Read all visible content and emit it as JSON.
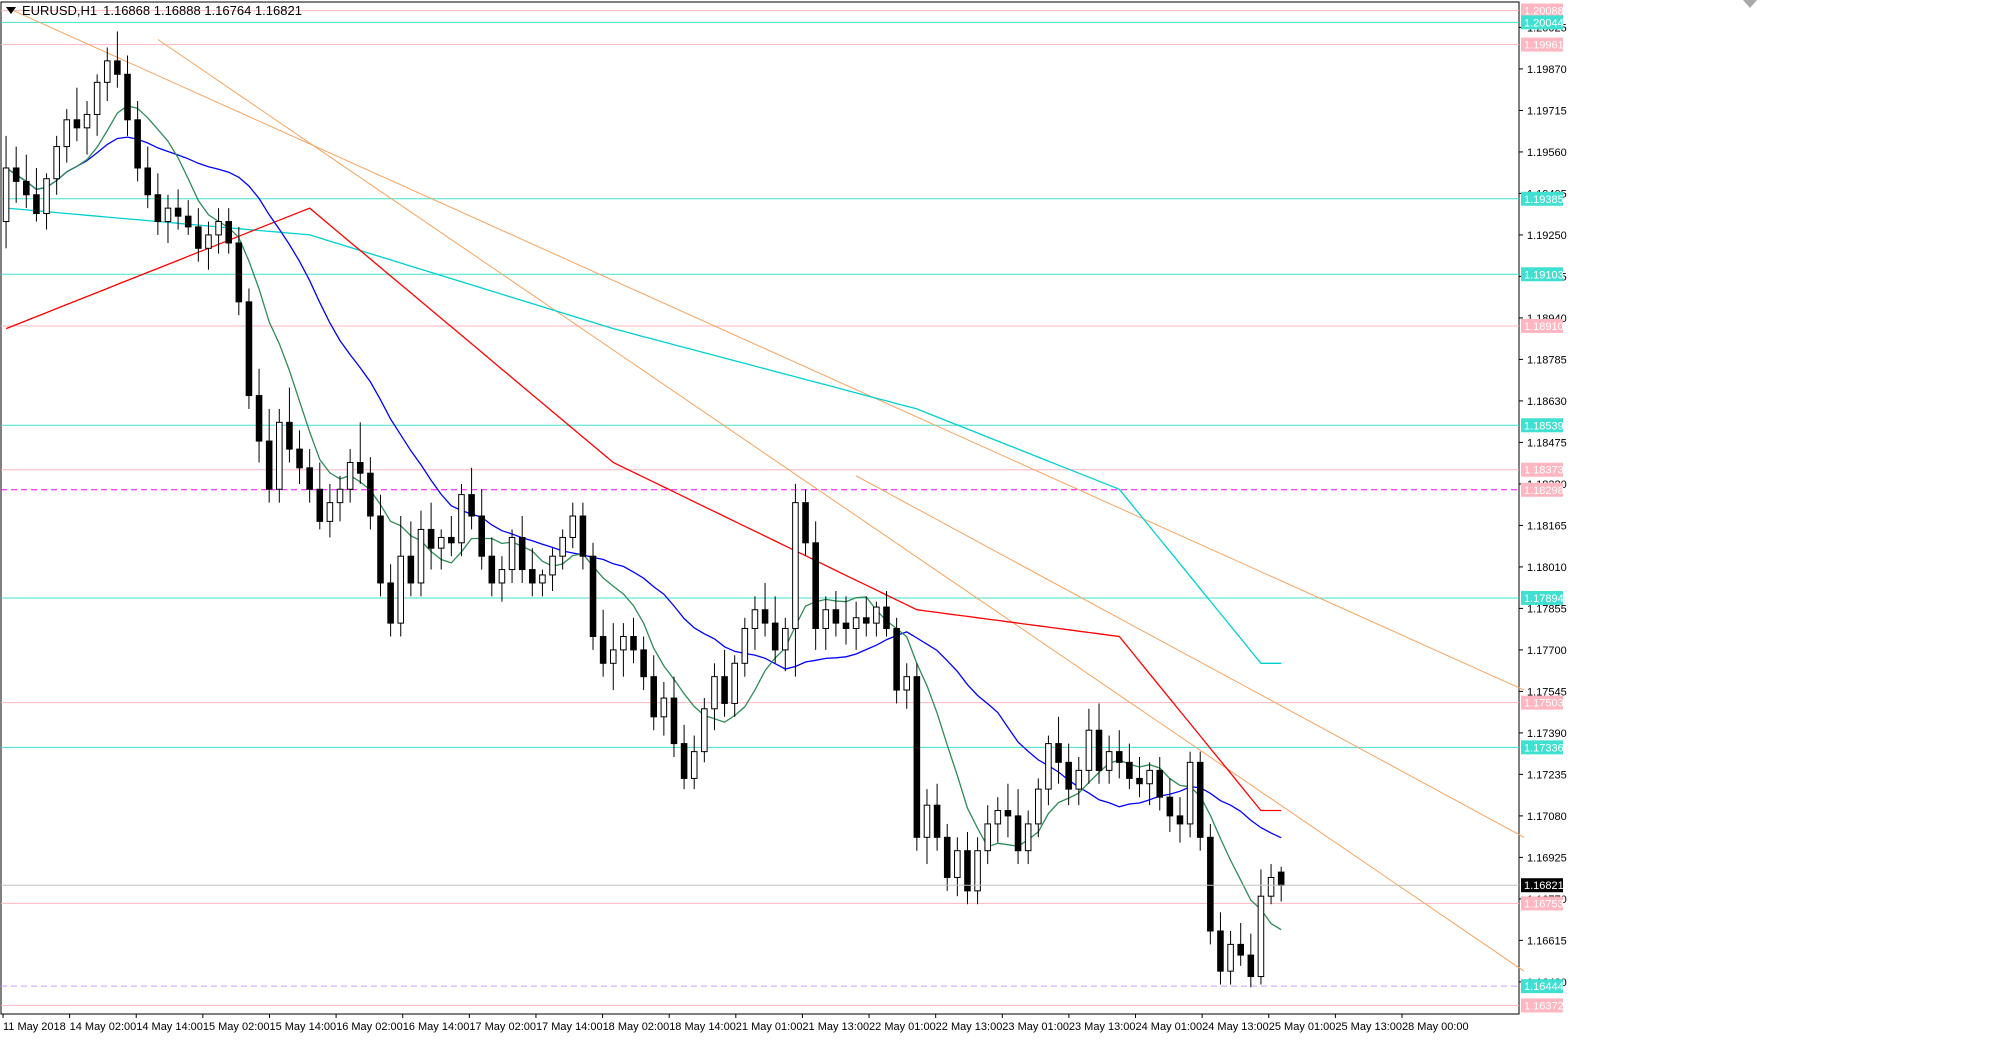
{
  "header": {
    "symbol_timeframe": "EURUSD,H1",
    "ohlc": "1.16868 1.16888 1.16764 1.16821"
  },
  "colors": {
    "background": "#ffffff",
    "frame": "#000000",
    "candle_bull": "#ffffff",
    "candle_bear": "#000000",
    "ma_fast": "#2e8b57",
    "ma_mid": "#0000ff",
    "ma_slow": "#ff0000",
    "ma_long": "#00d0d0",
    "trendline": "#f4a460",
    "level_cyan": "#40e0d0",
    "level_pink": "#ffb6c1",
    "level_magenta": "#ff00ff",
    "level_lavender": "#c8a2ff",
    "sr_blue": "#0000cc",
    "sr_green": "#2e8b57",
    "current_price_bg": "#000000"
  },
  "chart_data": {
    "type": "candlestick",
    "symbol": "EURUSD",
    "timeframe": "H1",
    "ylim": [
      1.1634,
      1.2012
    ],
    "price_axis_ticks": [
      "1.20025",
      "1.19870",
      "1.19715",
      "1.19560",
      "1.19405",
      "1.19250",
      "1.19095",
      "1.18940",
      "1.18785",
      "1.18630",
      "1.18475",
      "1.18320",
      "1.18165",
      "1.18010",
      "1.17855",
      "1.17700",
      "1.17545",
      "1.17390",
      "1.17235",
      "1.17080",
      "1.16925",
      "1.16770",
      "1.16615",
      "1.16460"
    ],
    "time_axis_labels": [
      "11 May 2018",
      "14 May 02:00",
      "14 May 14:00",
      "15 May 02:00",
      "15 May 14:00",
      "16 May 02:00",
      "16 May 14:00",
      "17 May 02:00",
      "17 May 14:00",
      "18 May 02:00",
      "18 May 14:00",
      "21 May 01:00",
      "21 May 13:00",
      "22 May 01:00",
      "22 May 13:00",
      "23 May 01:00",
      "23 May 13:00",
      "24 May 01:00",
      "24 May 13:00",
      "25 May 01:00",
      "25 May 13:00",
      "28 May 00:00"
    ],
    "current_price": "1.16821",
    "levels": [
      {
        "price": 1.20088,
        "label": "1.20088",
        "kind": "pink"
      },
      {
        "price": 1.20044,
        "label": "1.20044",
        "kind": "cyan"
      },
      {
        "price": 1.19961,
        "label": "1.19961",
        "kind": "pink"
      },
      {
        "price": 1.19385,
        "label": "1.19385",
        "kind": "cyan"
      },
      {
        "price": 1.19103,
        "label": "1.19103",
        "kind": "cyan"
      },
      {
        "price": 1.1891,
        "label": "1.18910",
        "kind": "pink"
      },
      {
        "price": 1.18539,
        "label": "1.18539",
        "kind": "cyan"
      },
      {
        "price": 1.18373,
        "label": "1.18373",
        "kind": "pink"
      },
      {
        "price": 1.18298,
        "label": "1.18298",
        "kind": "pink-magenta"
      },
      {
        "price": 1.17894,
        "label": "1.17894",
        "kind": "cyan"
      },
      {
        "price": 1.17503,
        "label": "1.17503",
        "kind": "pink"
      },
      {
        "price": 1.17336,
        "label": "1.17336",
        "kind": "cyan"
      },
      {
        "price": 1.16753,
        "label": "1.16753",
        "kind": "pink"
      },
      {
        "price": 1.16444,
        "label": "1.16444",
        "kind": "cyan-lavender"
      },
      {
        "price": 1.16372,
        "label": "1.16372",
        "kind": "pink"
      }
    ],
    "series": [
      {
        "name": "Price",
        "type": "candlestick",
        "ohlc": [
          [
            1.193,
            1.1962,
            1.192,
            1.195
          ],
          [
            1.195,
            1.1958,
            1.1937,
            1.1945
          ],
          [
            1.1945,
            1.1955,
            1.1935,
            1.194
          ],
          [
            1.194,
            1.195,
            1.193,
            1.1933
          ],
          [
            1.1933,
            1.1948,
            1.1927,
            1.1946
          ],
          [
            1.1946,
            1.1962,
            1.194,
            1.1958
          ],
          [
            1.1958,
            1.1972,
            1.1952,
            1.1968
          ],
          [
            1.1968,
            1.198,
            1.196,
            1.1965
          ],
          [
            1.1965,
            1.1975,
            1.1955,
            1.197
          ],
          [
            1.197,
            1.1985,
            1.1962,
            1.1982
          ],
          [
            1.1982,
            1.1995,
            1.1975,
            1.199
          ],
          [
            1.199,
            1.2001,
            1.198,
            1.1985
          ],
          [
            1.1985,
            1.1992,
            1.1962,
            1.1968
          ],
          [
            1.1968,
            1.1975,
            1.1945,
            1.195
          ],
          [
            1.195,
            1.1958,
            1.1935,
            1.194
          ],
          [
            1.194,
            1.1948,
            1.1925,
            1.193
          ],
          [
            1.193,
            1.194,
            1.1922,
            1.1935
          ],
          [
            1.1935,
            1.1942,
            1.1927,
            1.1932
          ],
          [
            1.1932,
            1.1938,
            1.1925,
            1.1928
          ],
          [
            1.1928,
            1.1935,
            1.1915,
            1.192
          ],
          [
            1.192,
            1.193,
            1.1912,
            1.1925
          ],
          [
            1.1925,
            1.1935,
            1.1918,
            1.193
          ],
          [
            1.193,
            1.1935,
            1.1918,
            1.1922
          ],
          [
            1.1922,
            1.1928,
            1.1895,
            1.19
          ],
          [
            1.19,
            1.1905,
            1.186,
            1.1865
          ],
          [
            1.1865,
            1.1875,
            1.184,
            1.1848
          ],
          [
            1.1848,
            1.186,
            1.1825,
            1.183
          ],
          [
            1.183,
            1.186,
            1.1825,
            1.1855
          ],
          [
            1.1855,
            1.1868,
            1.184,
            1.1845
          ],
          [
            1.1845,
            1.1852,
            1.1832,
            1.1838
          ],
          [
            1.1838,
            1.1845,
            1.1825,
            1.183
          ],
          [
            1.183,
            1.184,
            1.1815,
            1.1818
          ],
          [
            1.1818,
            1.1832,
            1.1812,
            1.1825
          ],
          [
            1.1825,
            1.1835,
            1.1818,
            1.183
          ],
          [
            1.183,
            1.1845,
            1.1825,
            1.184
          ],
          [
            1.184,
            1.1855,
            1.1832,
            1.1836
          ],
          [
            1.1836,
            1.1842,
            1.1815,
            1.182
          ],
          [
            1.182,
            1.1828,
            1.179,
            1.1795
          ],
          [
            1.1795,
            1.1802,
            1.1775,
            1.178
          ],
          [
            1.178,
            1.182,
            1.1775,
            1.1805
          ],
          [
            1.1805,
            1.1818,
            1.179,
            1.1795
          ],
          [
            1.1795,
            1.1822,
            1.179,
            1.1815
          ],
          [
            1.1815,
            1.1825,
            1.18,
            1.1808
          ],
          [
            1.1808,
            1.1815,
            1.18,
            1.1812
          ],
          [
            1.1812,
            1.182,
            1.1805,
            1.181
          ],
          [
            1.181,
            1.1832,
            1.1805,
            1.1828
          ],
          [
            1.1828,
            1.1838,
            1.1815,
            1.182
          ],
          [
            1.182,
            1.183,
            1.18,
            1.1805
          ],
          [
            1.1805,
            1.1812,
            1.179,
            1.1795
          ],
          [
            1.1795,
            1.1805,
            1.1788,
            1.18
          ],
          [
            1.18,
            1.1815,
            1.1795,
            1.1812
          ],
          [
            1.1812,
            1.182,
            1.1795,
            1.18
          ],
          [
            1.18,
            1.1808,
            1.179,
            1.1795
          ],
          [
            1.1795,
            1.18,
            1.179,
            1.1798
          ],
          [
            1.1798,
            1.1808,
            1.1792,
            1.1805
          ],
          [
            1.1805,
            1.1815,
            1.18,
            1.1812
          ],
          [
            1.1812,
            1.1825,
            1.1808,
            1.182
          ],
          [
            1.182,
            1.1825,
            1.18,
            1.1805
          ],
          [
            1.1805,
            1.181,
            1.177,
            1.1775
          ],
          [
            1.1775,
            1.1785,
            1.176,
            1.1765
          ],
          [
            1.1765,
            1.178,
            1.1755,
            1.177
          ],
          [
            1.177,
            1.178,
            1.176,
            1.1775
          ],
          [
            1.1775,
            1.1782,
            1.1765,
            1.177
          ],
          [
            1.177,
            1.1775,
            1.1755,
            1.176
          ],
          [
            1.176,
            1.1768,
            1.174,
            1.1745
          ],
          [
            1.1745,
            1.1758,
            1.1738,
            1.1752
          ],
          [
            1.1752,
            1.176,
            1.173,
            1.1735
          ],
          [
            1.1735,
            1.1742,
            1.1718,
            1.1722
          ],
          [
            1.1722,
            1.1738,
            1.1718,
            1.1732
          ],
          [
            1.1732,
            1.1752,
            1.1728,
            1.1748
          ],
          [
            1.1748,
            1.1765,
            1.174,
            1.176
          ],
          [
            1.176,
            1.177,
            1.1745,
            1.175
          ],
          [
            1.175,
            1.1768,
            1.1745,
            1.1765
          ],
          [
            1.1765,
            1.1782,
            1.176,
            1.1778
          ],
          [
            1.1778,
            1.179,
            1.177,
            1.1785
          ],
          [
            1.1785,
            1.1795,
            1.1775,
            1.178
          ],
          [
            1.178,
            1.179,
            1.1765,
            1.177
          ],
          [
            1.177,
            1.1782,
            1.1762,
            1.1778
          ],
          [
            1.1778,
            1.1832,
            1.176,
            1.1825
          ],
          [
            1.1825,
            1.183,
            1.1805,
            1.181
          ],
          [
            1.181,
            1.1818,
            1.177,
            1.1778
          ],
          [
            1.1778,
            1.179,
            1.177,
            1.1785
          ],
          [
            1.1785,
            1.1792,
            1.1775,
            1.178
          ],
          [
            1.178,
            1.179,
            1.1772,
            1.1778
          ],
          [
            1.1778,
            1.1788,
            1.177,
            1.1782
          ],
          [
            1.1782,
            1.179,
            1.1775,
            1.178
          ],
          [
            1.178,
            1.1788,
            1.1775,
            1.1786
          ],
          [
            1.1786,
            1.1792,
            1.1775,
            1.1778
          ],
          [
            1.1778,
            1.1782,
            1.175,
            1.1755
          ],
          [
            1.1755,
            1.1765,
            1.1748,
            1.176
          ],
          [
            1.176,
            1.1765,
            1.1695,
            1.17
          ],
          [
            1.17,
            1.1718,
            1.169,
            1.1712
          ],
          [
            1.1712,
            1.172,
            1.1695,
            1.17
          ],
          [
            1.17,
            1.1705,
            1.168,
            1.1685
          ],
          [
            1.1685,
            1.17,
            1.1678,
            1.1695
          ],
          [
            1.1695,
            1.1702,
            1.1675,
            1.168
          ],
          [
            1.168,
            1.17,
            1.1675,
            1.1695
          ],
          [
            1.1695,
            1.1712,
            1.169,
            1.1705
          ],
          [
            1.1705,
            1.1715,
            1.1698,
            1.171
          ],
          [
            1.171,
            1.172,
            1.17,
            1.1708
          ],
          [
            1.1708,
            1.1718,
            1.169,
            1.1695
          ],
          [
            1.1695,
            1.171,
            1.169,
            1.1705
          ],
          [
            1.1705,
            1.1722,
            1.17,
            1.1718
          ],
          [
            1.1718,
            1.1738,
            1.1712,
            1.1735
          ],
          [
            1.1735,
            1.1745,
            1.172,
            1.1728
          ],
          [
            1.1728,
            1.1735,
            1.1712,
            1.1718
          ],
          [
            1.1718,
            1.173,
            1.1712,
            1.1725
          ],
          [
            1.1725,
            1.1748,
            1.172,
            1.174
          ],
          [
            1.174,
            1.175,
            1.172,
            1.1725
          ],
          [
            1.1725,
            1.1738,
            1.172,
            1.1732
          ],
          [
            1.1732,
            1.174,
            1.1722,
            1.1728
          ],
          [
            1.1728,
            1.1735,
            1.1718,
            1.1722
          ],
          [
            1.1722,
            1.173,
            1.1715,
            1.172
          ],
          [
            1.172,
            1.1728,
            1.1712,
            1.1725
          ],
          [
            1.1725,
            1.173,
            1.171,
            1.1715
          ],
          [
            1.1715,
            1.1722,
            1.1702,
            1.1708
          ],
          [
            1.1708,
            1.1715,
            1.1698,
            1.1705
          ],
          [
            1.1705,
            1.1732,
            1.17,
            1.1728
          ],
          [
            1.1728,
            1.1732,
            1.1695,
            1.17
          ],
          [
            1.17,
            1.1705,
            1.166,
            1.1665
          ],
          [
            1.1665,
            1.1672,
            1.1645,
            1.165
          ],
          [
            1.165,
            1.1665,
            1.1645,
            1.166
          ],
          [
            1.166,
            1.1668,
            1.1652,
            1.1656
          ],
          [
            1.1656,
            1.1664,
            1.1644,
            1.1648
          ],
          [
            1.1648,
            1.1688,
            1.1645,
            1.1678
          ],
          [
            1.1678,
            1.169,
            1.1675,
            1.1685
          ],
          [
            1.1687,
            1.1689,
            1.1676,
            1.1682
          ]
        ]
      },
      {
        "name": "MA fast",
        "color": "#2e8b57",
        "period": 8
      },
      {
        "name": "MA mid",
        "color": "#0000ff",
        "period": 21
      },
      {
        "name": "MA slow",
        "color": "#ff0000",
        "anchor": [
          [
            0,
            1.189
          ],
          [
            30,
            1.1935
          ],
          [
            60,
            1.184
          ],
          [
            90,
            1.1785
          ],
          [
            110,
            1.1775
          ],
          [
            124,
            1.171
          ]
        ]
      },
      {
        "name": "MA long",
        "color": "#00d0d0",
        "anchor": [
          [
            0,
            1.1935
          ],
          [
            30,
            1.1925
          ],
          [
            60,
            1.189
          ],
          [
            90,
            1.186
          ],
          [
            110,
            1.183
          ],
          [
            124,
            1.1765
          ]
        ]
      }
    ],
    "trendlines": [
      [
        [
          1.201,
          0
        ],
        [
          1.1755,
          150
        ]
      ],
      [
        [
          1.1998,
          15
        ],
        [
          1.165,
          150
        ]
      ],
      [
        [
          1.1835,
          84
        ],
        [
          1.17,
          150
        ]
      ]
    ]
  }
}
